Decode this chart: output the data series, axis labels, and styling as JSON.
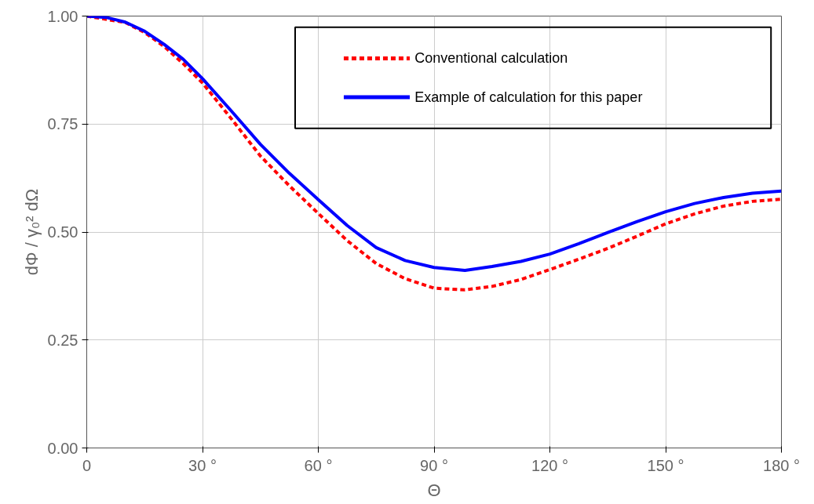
{
  "chart_data": {
    "type": "line",
    "xlabel": "Θ",
    "ylabel": "dΦ / γ₀² dΩ",
    "x": [
      0,
      5,
      10,
      15,
      20,
      25,
      30,
      37.5,
      45,
      52.5,
      60,
      67.5,
      75,
      82.5,
      90,
      98,
      105,
      112.5,
      120,
      127.5,
      135,
      142.5,
      150,
      157.5,
      165,
      172.5,
      180
    ],
    "series": [
      {
        "name": "Conventional calculation",
        "color": "#ff0000",
        "line_style": "dashed",
        "x": [
          0,
          10,
          15,
          20,
          25,
          30,
          37.5,
          45,
          52.5,
          60,
          67.5,
          75,
          82.5,
          90,
          98,
          105,
          112.5,
          120,
          127.5,
          135,
          142.5,
          150,
          157.5,
          165,
          172.5,
          180
        ],
        "values": [
          1.0,
          0.985,
          0.962,
          0.93,
          0.89,
          0.845,
          0.762,
          0.676,
          0.607,
          0.543,
          0.48,
          0.427,
          0.392,
          0.37,
          0.366,
          0.374,
          0.39,
          0.413,
          0.437,
          0.462,
          0.49,
          0.519,
          0.542,
          0.56,
          0.571,
          0.576
        ]
      },
      {
        "name": "Example of calculation for this paper",
        "color": "#0000ff",
        "line_style": "solid",
        "values": [
          1.0,
          0.997,
          0.986,
          0.965,
          0.935,
          0.9,
          0.855,
          0.78,
          0.703,
          0.636,
          0.575,
          0.515,
          0.464,
          0.434,
          0.418,
          0.411,
          0.42,
          0.432,
          0.449,
          0.473,
          0.499,
          0.524,
          0.547,
          0.566,
          0.58,
          0.59,
          0.595
        ]
      }
    ],
    "xlim": [
      0,
      180
    ],
    "ylim": [
      0,
      1
    ],
    "xticks": [
      0,
      {
        "value": 30,
        "label": "30 °"
      },
      {
        "value": 60,
        "label": "60 °"
      },
      {
        "value": 90,
        "label": "90 °"
      },
      {
        "value": 120,
        "label": "120 °"
      },
      {
        "value": 150,
        "label": "150 °"
      },
      {
        "value": 180,
        "label": "180 °"
      }
    ],
    "yticks": [
      {
        "value": 0,
        "label": "0.00"
      },
      {
        "value": 0.25,
        "label": "0.25"
      },
      {
        "value": 0.5,
        "label": "0.50"
      },
      {
        "value": 0.75,
        "label": "0.75"
      },
      {
        "value": 1,
        "label": "1.00"
      }
    ],
    "grid": true,
    "legend": "top right"
  }
}
